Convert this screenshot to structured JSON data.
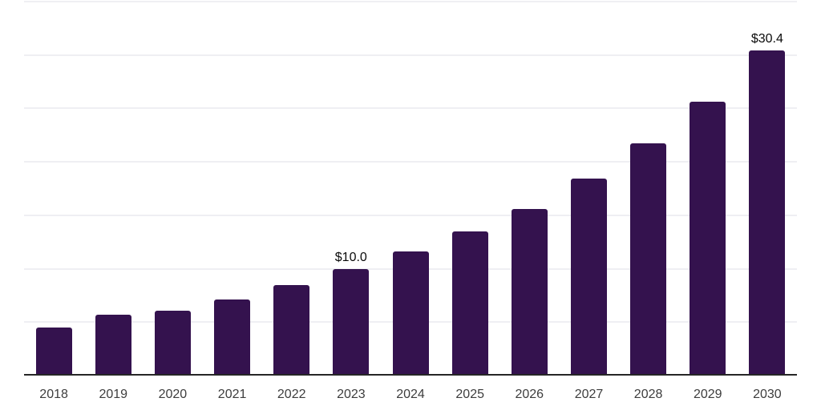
{
  "page": {
    "background": "#ffffff"
  },
  "chart_data": {
    "type": "bar",
    "title": "",
    "xlabel": "",
    "ylabel": "",
    "categories": [
      "2018",
      "2019",
      "2020",
      "2021",
      "2022",
      "2023",
      "2024",
      "2025",
      "2026",
      "2027",
      "2028",
      "2029",
      "2030"
    ],
    "values": [
      4.5,
      5.7,
      6.1,
      7.1,
      8.5,
      10.0,
      11.6,
      13.5,
      15.6,
      18.4,
      21.7,
      25.6,
      30.4
    ],
    "data_labels": [
      "",
      "",
      "",
      "",
      "",
      "$10.0",
      "",
      "",
      "",
      "",
      "",
      "",
      "$30.4"
    ],
    "ylim": [
      0,
      35
    ],
    "ytick_step": 5,
    "yaxis_labels_visible": false,
    "grid": "horizontal",
    "legend_position": "none",
    "bar_color": "#34124e",
    "gridline_color": "#efeff3",
    "axis_line_color": "#262626",
    "tick_label_color": "#3d3d3d",
    "data_label_color": "#0a0a0a"
  }
}
